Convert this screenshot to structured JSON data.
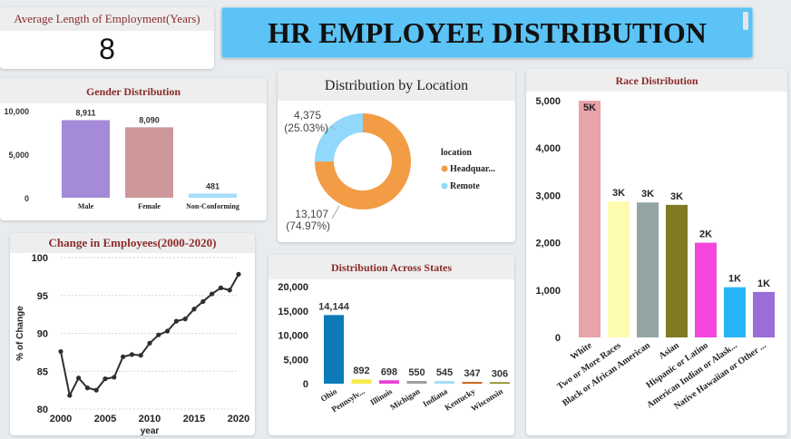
{
  "title": "HR EMPLOYEE DISTRIBUTION",
  "kpi": {
    "label": "Average Length of Employment(Years)",
    "value": "8"
  },
  "colors": {
    "header_bg": "#5bc3f5",
    "card_title": "#8b2b2b",
    "location_orange": "#f39c46",
    "location_blue": "#92d8fb",
    "states_blue": "#0c7bb8",
    "line": "#2f2f2f"
  },
  "gender": {
    "title": "Gender Distribution",
    "chart_data": {
      "type": "bar",
      "categories": [
        "Male",
        "Female",
        "Non-Conforming"
      ],
      "values": [
        8911,
        8090,
        481
      ],
      "value_labels": [
        "8,911",
        "8,090",
        "481"
      ],
      "colors": [
        "#a48ad8",
        "#cd979a",
        "#a5dcf8"
      ],
      "y_ticks": [
        "0",
        "5,000",
        "10,000"
      ],
      "ylim": [
        0,
        10000
      ]
    }
  },
  "location": {
    "title": "Distribution by Location",
    "chart_data": {
      "type": "pie",
      "donut": true,
      "legend_title": "location",
      "categories": [
        "Headquar...",
        "Remote"
      ],
      "values": [
        13107,
        4375
      ],
      "value_labels": [
        "13,107",
        "4,375"
      ],
      "pct_labels": [
        "(74.97%)",
        "(25.03%)"
      ],
      "colors": [
        "#f39c46",
        "#92d8fb"
      ]
    }
  },
  "change": {
    "title": "Change in Employees(2000-2020)",
    "chart_data": {
      "type": "line",
      "xlabel": "year",
      "ylabel": "% of Change",
      "x": [
        2000,
        2001,
        2002,
        2003,
        2004,
        2005,
        2006,
        2007,
        2008,
        2009,
        2010,
        2011,
        2012,
        2013,
        2014,
        2015,
        2016,
        2017,
        2018,
        2019,
        2020
      ],
      "values": [
        87.6,
        81.8,
        84.1,
        82.8,
        82.5,
        84.0,
        84.2,
        86.9,
        87.2,
        87.1,
        88.7,
        89.8,
        90.3,
        91.6,
        91.9,
        93.2,
        94.2,
        95.2,
        96.0,
        95.7,
        97.8
      ],
      "x_ticks": [
        "2000",
        "2005",
        "2010",
        "2015",
        "2020"
      ],
      "y_ticks": [
        "80",
        "85",
        "90",
        "95",
        "100"
      ],
      "xlim": [
        2000,
        2020
      ],
      "ylim": [
        80,
        100
      ]
    }
  },
  "states": {
    "title": "Distribution Across States",
    "chart_data": {
      "type": "bar",
      "categories": [
        "Ohio",
        "Pennsylv...",
        "Illinois",
        "Michigan",
        "Indiana",
        "Kentucky",
        "Wisconsin"
      ],
      "values": [
        14144,
        892,
        698,
        550,
        545,
        347,
        306
      ],
      "value_labels": [
        "14,144",
        "892",
        "698",
        "550",
        "545",
        "347",
        "306"
      ],
      "colors": [
        "#0c7bb8",
        "#f6e94b",
        "#e93fd7",
        "#9d9d9d",
        "#a5dcf8",
        "#c85c12",
        "#888820"
      ],
      "y_ticks": [
        "0",
        "5,000",
        "10,000",
        "15,000",
        "20,000"
      ],
      "ylim": [
        0,
        20000
      ]
    }
  },
  "race": {
    "title": "Race Distribution",
    "chart_data": {
      "type": "bar",
      "categories": [
        "White",
        "Two or More Races",
        "Black or African American",
        "Asian",
        "Hispanic or Latino",
        "American Indian or Alask...",
        "Native Hawaiian or Other ..."
      ],
      "values": [
        5000,
        2870,
        2850,
        2800,
        2000,
        1060,
        960
      ],
      "value_labels": [
        "5K",
        "3K",
        "3K",
        "3K",
        "2K",
        "1K",
        "1K"
      ],
      "colors": [
        "#e8a4a8",
        "#fdfbb0",
        "#95a5a6",
        "#7f7a23",
        "#f546dc",
        "#27b5f8",
        "#9a6dd7"
      ],
      "y_ticks": [
        "0",
        "1,000",
        "2,000",
        "3,000",
        "4,000",
        "5,000"
      ],
      "ylim": [
        0,
        5000
      ]
    }
  }
}
